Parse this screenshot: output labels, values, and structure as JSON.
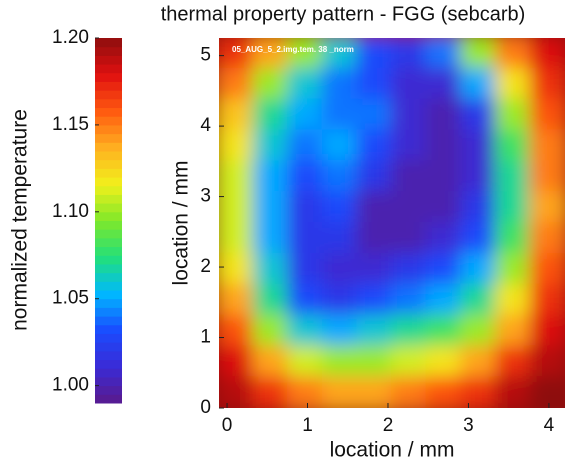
{
  "chart_data": {
    "type": "heatmap",
    "title": "thermal property pattern - FGG (sebcarb)",
    "annotation": "05_AUG_5_2.img.tem. 38 _norm",
    "xlabel": "location / mm",
    "ylabel": "location / mm",
    "colorbar_label": "normalized temperature",
    "xlim": [
      -0.1,
      4.2
    ],
    "xticks": [
      0,
      1,
      2,
      3,
      4
    ],
    "ylim": [
      0,
      5.25
    ],
    "yticks": [
      0,
      1,
      2,
      3,
      4,
      5
    ],
    "clim": [
      0.99,
      1.2
    ],
    "cticks": [
      {
        "value": 1.0,
        "label": "1.00"
      },
      1.05,
      {
        "value": 1.1,
        "label": "1.10"
      },
      1.15,
      {
        "value": 1.2,
        "label": "1.20"
      }
    ],
    "colormap": [
      "#5a1a8c",
      "#3a2bd6",
      "#1a4cff",
      "#00b8ff",
      "#22e07a",
      "#7fe82a",
      "#f2f01c",
      "#ffb020",
      "#ff5a10",
      "#e01010",
      "#8e0e0e"
    ],
    "z": [
      [
        1.17,
        1.14,
        1.1,
        1.06,
        1.03,
        1.02,
        1.04,
        1.1,
        1.15,
        1.18
      ],
      [
        1.15,
        1.1,
        1.06,
        1.04,
        1.03,
        1.01,
        1.01,
        1.05,
        1.12,
        1.17
      ],
      [
        1.13,
        1.07,
        1.05,
        1.04,
        1.04,
        1.01,
        1.0,
        1.02,
        1.1,
        1.16
      ],
      [
        1.12,
        1.06,
        1.04,
        1.05,
        1.03,
        1.01,
        1.0,
        1.01,
        1.08,
        1.15
      ],
      [
        1.11,
        1.05,
        1.03,
        1.04,
        1.02,
        1.0,
        1.0,
        1.01,
        1.07,
        1.15
      ],
      [
        1.11,
        1.05,
        1.02,
        1.03,
        1.0,
        1.0,
        1.0,
        1.02,
        1.07,
        1.14
      ],
      [
        1.11,
        1.05,
        1.02,
        1.02,
        1.0,
        1.0,
        1.01,
        1.03,
        1.08,
        1.15
      ],
      [
        1.12,
        1.06,
        1.02,
        1.01,
        1.01,
        1.02,
        1.03,
        1.05,
        1.1,
        1.16
      ],
      [
        1.14,
        1.07,
        1.03,
        1.02,
        1.03,
        1.04,
        1.05,
        1.07,
        1.12,
        1.17
      ],
      [
        1.16,
        1.1,
        1.06,
        1.05,
        1.06,
        1.07,
        1.08,
        1.1,
        1.14,
        1.18
      ],
      [
        1.18,
        1.14,
        1.11,
        1.1,
        1.1,
        1.11,
        1.12,
        1.14,
        1.17,
        1.19
      ],
      [
        1.19,
        1.17,
        1.15,
        1.14,
        1.14,
        1.15,
        1.16,
        1.17,
        1.19,
        1.2
      ]
    ]
  }
}
